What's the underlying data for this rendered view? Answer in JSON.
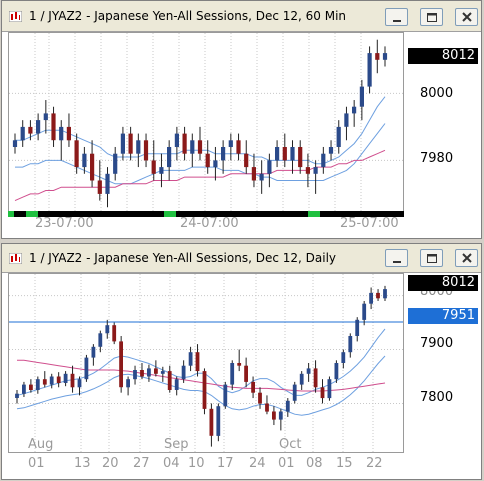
{
  "windows": [
    {
      "title": "1 / JYAZ2 - Japanese Yen-All Sessions, Dec 12, 60 Min",
      "last_price": "8012",
      "y_labels": [
        "8000",
        "7980"
      ],
      "x_labels": [
        "23-07:00",
        "24-07:00",
        "25-07:00"
      ],
      "chart_data": {
        "type": "candlestick",
        "timeframe": "60 Min",
        "symbol": "JYAZ2",
        "ylim": [
          7964,
          8018
        ],
        "y_ticks": [
          8000,
          7980
        ],
        "x_ticks": [
          "23-07:00",
          "24-07:00",
          "25-07:00"
        ],
        "last": 8012,
        "candles": [
          [
            7984,
            7988,
            7982,
            7986
          ],
          [
            7986,
            7992,
            7984,
            7990
          ],
          [
            7990,
            7992,
            7986,
            7988
          ],
          [
            7988,
            7994,
            7986,
            7992
          ],
          [
            7992,
            7998,
            7988,
            7994
          ],
          [
            7994,
            7996,
            7984,
            7986
          ],
          [
            7986,
            7992,
            7980,
            7990
          ],
          [
            7990,
            7994,
            7984,
            7986
          ],
          [
            7986,
            7988,
            7976,
            7978
          ],
          [
            7978,
            7984,
            7976,
            7982
          ],
          [
            7982,
            7986,
            7972,
            7974
          ],
          [
            7974,
            7980,
            7968,
            7970
          ],
          [
            7970,
            7978,
            7966,
            7976
          ],
          [
            7976,
            7984,
            7974,
            7982
          ],
          [
            7982,
            7990,
            7980,
            7988
          ],
          [
            7988,
            7990,
            7980,
            7982
          ],
          [
            7982,
            7988,
            7978,
            7986
          ],
          [
            7986,
            7988,
            7978,
            7980
          ],
          [
            7980,
            7986,
            7974,
            7976
          ],
          [
            7976,
            7982,
            7972,
            7978
          ],
          [
            7978,
            7986,
            7974,
            7984
          ],
          [
            7984,
            7990,
            7980,
            7988
          ],
          [
            7988,
            7990,
            7980,
            7982
          ],
          [
            7982,
            7988,
            7978,
            7986
          ],
          [
            7986,
            7990,
            7980,
            7982
          ],
          [
            7982,
            7986,
            7976,
            7978
          ],
          [
            7978,
            7984,
            7974,
            7980
          ],
          [
            7980,
            7986,
            7976,
            7984
          ],
          [
            7984,
            7988,
            7980,
            7986
          ],
          [
            7986,
            7988,
            7980,
            7982
          ],
          [
            7982,
            7986,
            7976,
            7978
          ],
          [
            7978,
            7982,
            7972,
            7974
          ],
          [
            7974,
            7980,
            7970,
            7976
          ],
          [
            7976,
            7982,
            7972,
            7980
          ],
          [
            7980,
            7986,
            7978,
            7984
          ],
          [
            7984,
            7988,
            7978,
            7980
          ],
          [
            7980,
            7986,
            7976,
            7984
          ],
          [
            7984,
            7986,
            7976,
            7978
          ],
          [
            7978,
            7982,
            7972,
            7976
          ],
          [
            7976,
            7980,
            7970,
            7978
          ],
          [
            7978,
            7984,
            7976,
            7982
          ],
          [
            7982,
            7986,
            7980,
            7984
          ],
          [
            7984,
            7992,
            7982,
            7990
          ],
          [
            7990,
            7996,
            7986,
            7994
          ],
          [
            7994,
            7998,
            7990,
            7996
          ],
          [
            7996,
            8004,
            7992,
            8002
          ],
          [
            8002,
            8014,
            8000,
            8012
          ],
          [
            8012,
            8016,
            8006,
            8010
          ],
          [
            8010,
            8014,
            8008,
            8012
          ]
        ],
        "indicators": [
          {
            "color": "#6ea0e0",
            "values": [
              7986,
              7986,
              7987,
              7988,
              7989,
              7989,
              7989,
              7988,
              7987,
              7986,
              7985,
              7984,
              7982,
              7981,
              7981,
              7981,
              7981,
              7982,
              7982,
              7982,
              7982,
              7982,
              7983,
              7983,
              7983,
              7983,
              7982,
              7982,
              7982,
              7982,
              7982,
              7981,
              7981,
              7980,
              7980,
              7980,
              7980,
              7980,
              7980,
              7979,
              7979,
              7980,
              7981,
              7983,
              7985,
              7988,
              7992,
              7996,
              7999
            ]
          },
          {
            "color": "#6ea0e0",
            "values": [
              7978,
              7978,
              7979,
              7979,
              7980,
              7980,
              7980,
              7979,
              7978,
              7977,
              7976,
              7975,
              7974,
              7973,
              7973,
              7973,
              7974,
              7975,
              7976,
              7977,
              7977,
              7977,
              7977,
              7978,
              7978,
              7978,
              7978,
              7977,
              7977,
              7977,
              7976,
              7976,
              7975,
              7975,
              7974,
              7974,
              7974,
              7974,
              7974,
              7974,
              7974,
              7975,
              7976,
              7977,
              7979,
              7982,
              7985,
              7988,
              7991
            ]
          },
          {
            "color": "#d04f8e",
            "values": [
              7968,
              7969,
              7970,
              7970,
              7971,
              7971,
              7972,
              7972,
              7972,
              7972,
              7972,
              7972,
              7972,
              7972,
              7973,
              7973,
              7973,
              7973,
              7974,
              7974,
              7974,
              7974,
              7975,
              7975,
              7975,
              7975,
              7975,
              7975,
              7976,
              7976,
              7976,
              7976,
              7976,
              7976,
              7977,
              7977,
              7977,
              7977,
              7977,
              7978,
              7978,
              7978,
              7979,
              7979,
              7980,
              7980,
              7981,
              7982,
              7983
            ]
          }
        ]
      }
    },
    {
      "title": "1 / JYAZ2 - Japanese Yen-All Sessions, Dec 12, Daily",
      "last_price": "8012",
      "line_price": "7951",
      "y_labels": [
        "8000",
        "7900",
        "7800"
      ],
      "x_labels": [
        "01",
        "13",
        "20",
        "27",
        "04",
        "10",
        "17",
        "24",
        "01",
        "08",
        "15",
        "22"
      ],
      "month_labels": [
        "Aug",
        "Sep",
        "Oct"
      ],
      "chart_data": {
        "type": "candlestick",
        "timeframe": "Daily",
        "symbol": "JYAZ2",
        "ylim": [
          7710,
          8040
        ],
        "y_ticks": [
          8000,
          7900,
          7800
        ],
        "x_ticks": [
          "01",
          "13",
          "20",
          "27",
          "04",
          "10",
          "17",
          "24",
          "01",
          "08",
          "15",
          "22"
        ],
        "months": [
          "Aug",
          "Sep",
          "Oct"
        ],
        "horizontal_line": 7951,
        "last": 8012,
        "candles": [
          [
            7810,
            7825,
            7800,
            7818
          ],
          [
            7818,
            7840,
            7812,
            7835
          ],
          [
            7835,
            7845,
            7820,
            7825
          ],
          [
            7825,
            7850,
            7818,
            7845
          ],
          [
            7845,
            7860,
            7830,
            7835
          ],
          [
            7835,
            7855,
            7828,
            7850
          ],
          [
            7850,
            7858,
            7830,
            7838
          ],
          [
            7838,
            7860,
            7832,
            7855
          ],
          [
            7855,
            7870,
            7820,
            7830
          ],
          [
            7830,
            7850,
            7815,
            7845
          ],
          [
            7845,
            7890,
            7840,
            7885
          ],
          [
            7885,
            7910,
            7870,
            7905
          ],
          [
            7905,
            7935,
            7895,
            7930
          ],
          [
            7930,
            7955,
            7920,
            7945
          ],
          [
            7945,
            7950,
            7910,
            7915
          ],
          [
            7915,
            7925,
            7820,
            7830
          ],
          [
            7830,
            7850,
            7815,
            7845
          ],
          [
            7845,
            7870,
            7835,
            7862
          ],
          [
            7862,
            7875,
            7845,
            7850
          ],
          [
            7850,
            7872,
            7840,
            7865
          ],
          [
            7865,
            7880,
            7850,
            7855
          ],
          [
            7855,
            7868,
            7840,
            7860
          ],
          [
            7860,
            7870,
            7820,
            7825
          ],
          [
            7825,
            7850,
            7815,
            7845
          ],
          [
            7845,
            7880,
            7838,
            7870
          ],
          [
            7870,
            7905,
            7860,
            7895
          ],
          [
            7895,
            7910,
            7850,
            7860
          ],
          [
            7860,
            7865,
            7780,
            7790
          ],
          [
            7790,
            7800,
            7720,
            7740
          ],
          [
            7740,
            7800,
            7730,
            7795
          ],
          [
            7795,
            7840,
            7790,
            7835
          ],
          [
            7835,
            7880,
            7825,
            7875
          ],
          [
            7875,
            7900,
            7860,
            7870
          ],
          [
            7870,
            7885,
            7830,
            7840
          ],
          [
            7840,
            7850,
            7810,
            7820
          ],
          [
            7820,
            7830,
            7790,
            7800
          ],
          [
            7800,
            7815,
            7780,
            7785
          ],
          [
            7785,
            7795,
            7760,
            7770
          ],
          [
            7770,
            7790,
            7750,
            7785
          ],
          [
            7785,
            7810,
            7775,
            7805
          ],
          [
            7805,
            7840,
            7800,
            7835
          ],
          [
            7835,
            7860,
            7825,
            7855
          ],
          [
            7855,
            7875,
            7840,
            7865
          ],
          [
            7865,
            7880,
            7820,
            7830
          ],
          [
            7830,
            7845,
            7800,
            7810
          ],
          [
            7810,
            7850,
            7805,
            7845
          ],
          [
            7845,
            7880,
            7838,
            7875
          ],
          [
            7875,
            7900,
            7865,
            7895
          ],
          [
            7895,
            7930,
            7885,
            7925
          ],
          [
            7925,
            7960,
            7915,
            7955
          ],
          [
            7955,
            7990,
            7945,
            7985
          ],
          [
            7985,
            8015,
            7975,
            8005
          ],
          [
            8005,
            8012,
            7990,
            7995
          ],
          [
            7995,
            8018,
            7990,
            8012
          ]
        ],
        "indicators": [
          {
            "color": "#6ea0e0",
            "values": [
              7815,
              7818,
              7822,
              7826,
              7830,
              7834,
              7838,
              7842,
              7844,
              7846,
              7850,
              7856,
              7864,
              7874,
              7884,
              7888,
              7886,
              7882,
              7878,
              7874,
              7868,
              7862,
              7856,
              7850,
              7848,
              7850,
              7856,
              7856,
              7846,
              7832,
              7824,
              7820,
              7824,
              7832,
              7842,
              7846,
              7846,
              7840,
              7830,
              7822,
              7815,
              7815,
              7820,
              7826,
              7830,
              7835,
              7842,
              7850,
              7860,
              7872,
              7886,
              7904,
              7922,
              7938
            ]
          },
          {
            "color": "#6ea0e0",
            "values": [
              7790,
              7792,
              7796,
              7800,
              7804,
              7808,
              7811,
              7814,
              7816,
              7818,
              7822,
              7827,
              7833,
              7840,
              7848,
              7853,
              7854,
              7852,
              7849,
              7846,
              7842,
              7838,
              7834,
              7830,
              7826,
              7824,
              7824,
              7822,
              7815,
              7805,
              7796,
              7790,
              7788,
              7790,
              7795,
              7798,
              7798,
              7795,
              7790,
              7785,
              7780,
              7778,
              7780,
              7784,
              7788,
              7792,
              7798,
              7806,
              7816,
              7828,
              7842,
              7858,
              7874,
              7888
            ]
          },
          {
            "color": "#d04f8e",
            "values": [
              7880,
              7880,
              7878,
              7876,
              7874,
              7872,
              7870,
              7868,
              7866,
              7864,
              7862,
              7862,
              7862,
              7862,
              7862,
              7861,
              7860,
              7858,
              7856,
              7854,
              7852,
              7850,
              7848,
              7846,
              7844,
              7842,
              7840,
              7838,
              7836,
              7834,
              7832,
              7830,
              7829,
              7828,
              7828,
              7828,
              7828,
              7827,
              7826,
              7825,
              7824,
              7823,
              7823,
              7823,
              7823,
              7824,
              7825,
              7826,
              7828,
              7830,
              7832,
              7834,
              7836,
              7838
            ]
          }
        ]
      }
    }
  ]
}
